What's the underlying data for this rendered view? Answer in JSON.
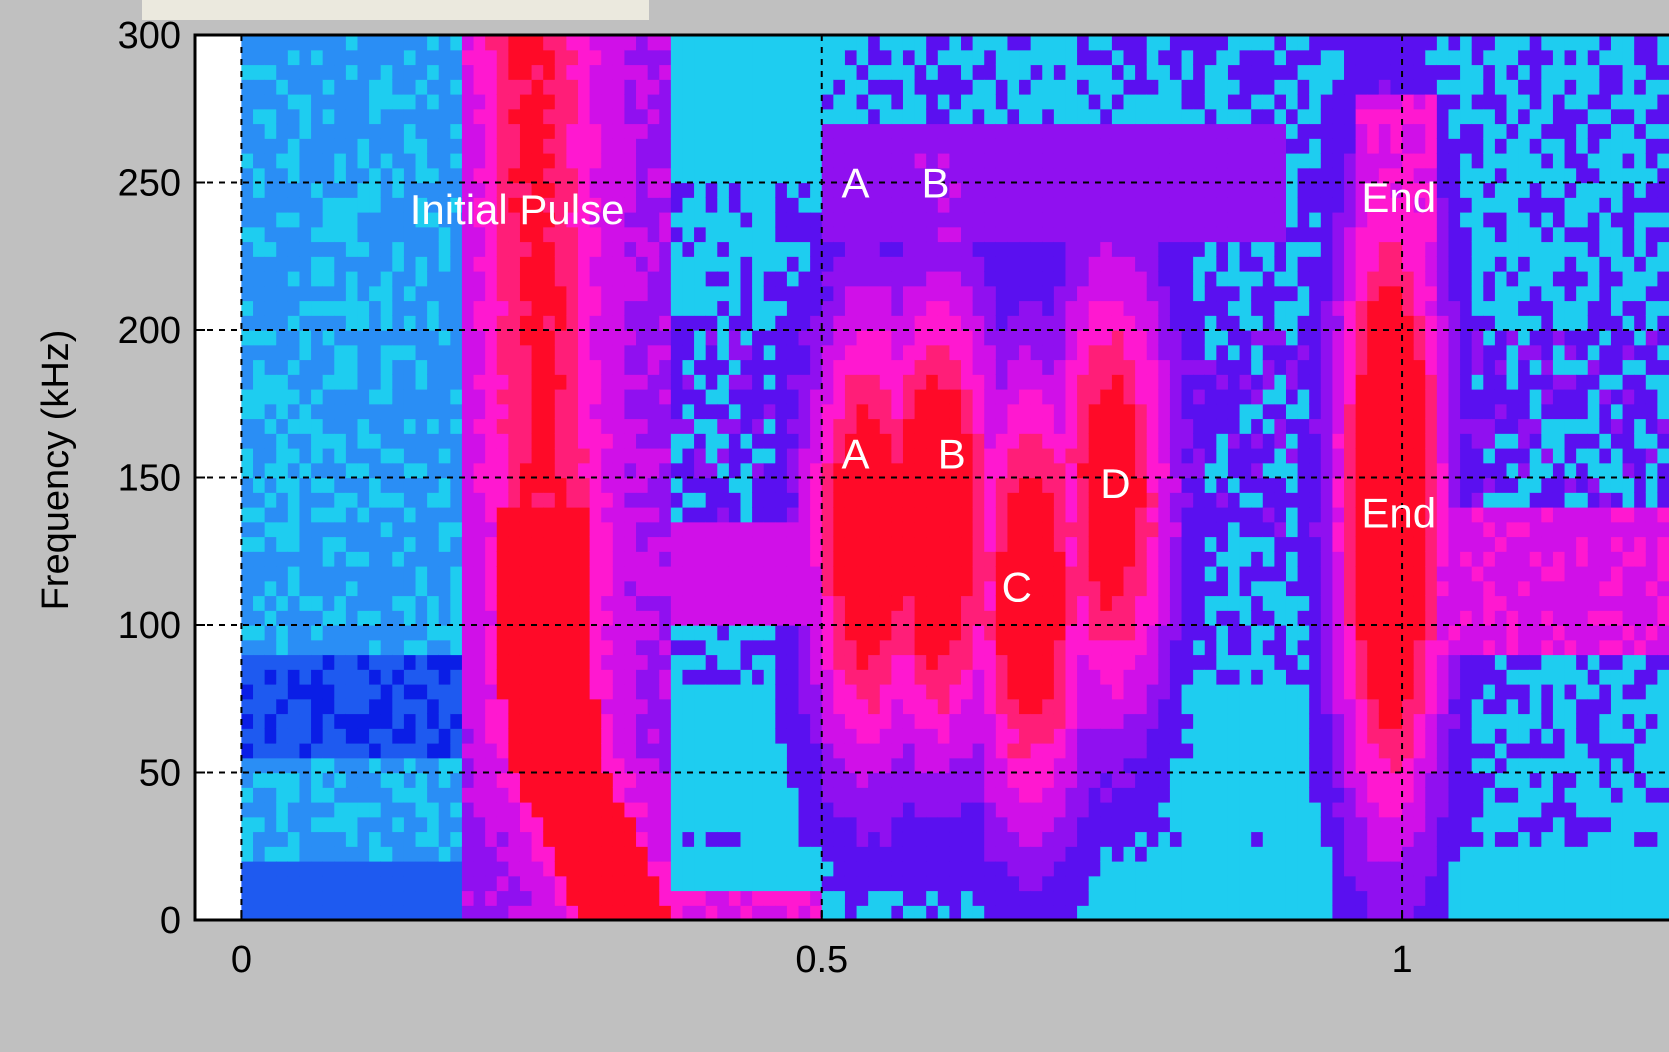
{
  "chart_data": {
    "type": "heatmap",
    "title": "",
    "xlabel": "",
    "ylabel": "Frequency (kHz)",
    "xlim": [
      -0.04,
      1.23
    ],
    "ylim": [
      0,
      300
    ],
    "x_ticks": [
      "0",
      "0.5",
      "1"
    ],
    "x_tick_values": [
      0,
      0.5,
      1
    ],
    "y_ticks": [
      "0",
      "50",
      "100",
      "150",
      "200",
      "250",
      "300"
    ],
    "y_tick_values": [
      0,
      50,
      100,
      150,
      200,
      250,
      300
    ],
    "grid": true,
    "colormap": [
      "#0a1ee6",
      "#1e5af0",
      "#2a8ef5",
      "#1ecdf0",
      "#5a10f0",
      "#9010f0",
      "#d010e8",
      "#ff18d0",
      "#ff1e78",
      "#ff0a28"
    ],
    "features": [
      {
        "label": "Initial Pulse",
        "x_start": 0.2,
        "x_end": 0.35,
        "y_start": 0,
        "y_end": 300,
        "peak_x": 0.27,
        "peak_y": 60,
        "intensity": 0.95
      },
      {
        "label": "A",
        "x": 0.54,
        "y": 130,
        "intensity": 0.7
      },
      {
        "label": "B",
        "x": 0.6,
        "y": 135,
        "intensity": 0.75
      },
      {
        "label": "C",
        "x": 0.68,
        "y": 110,
        "intensity": 0.68
      },
      {
        "label": "D",
        "x": 0.75,
        "y": 145,
        "intensity": 0.65
      },
      {
        "label": "End",
        "x": 0.99,
        "y": 140,
        "intensity": 0.85
      }
    ],
    "annotations": [
      {
        "text": "Initial Pulse",
        "x": 0.145,
        "y": 236
      },
      {
        "text": "A",
        "x": 0.517,
        "y": 245
      },
      {
        "text": "B",
        "x": 0.586,
        "y": 245
      },
      {
        "text": "End",
        "x": 0.965,
        "y": 240
      },
      {
        "text": "A",
        "x": 0.517,
        "y": 153
      },
      {
        "text": "B",
        "x": 0.6,
        "y": 153
      },
      {
        "text": "D",
        "x": 0.74,
        "y": 143
      },
      {
        "text": "End",
        "x": 0.965,
        "y": 133
      },
      {
        "text": "C",
        "x": 0.655,
        "y": 108
      }
    ]
  }
}
